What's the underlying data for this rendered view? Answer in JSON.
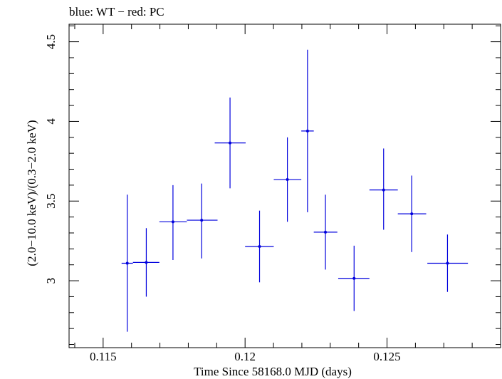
{
  "chart_data": {
    "type": "scatter",
    "title": "blue: WT − red: PC",
    "xlabel": "Time Since 58168.0 MJD (days)",
    "ylabel": "(2.0−10.0 keV)/(0.3−2.0 keV)",
    "xlim": [
      0.1138,
      0.129
    ],
    "ylim": [
      2.58,
      4.61
    ],
    "x_ticks": [
      {
        "value": 0.115,
        "label": "0.115"
      },
      {
        "value": 0.12,
        "label": "0.12"
      },
      {
        "value": 0.125,
        "label": "0.125"
      }
    ],
    "y_ticks": [
      {
        "value": 3,
        "label": "3"
      },
      {
        "value": 3.5,
        "label": "3.5"
      },
      {
        "value": 4,
        "label": "4"
      },
      {
        "value": 4.5,
        "label": "4.5"
      }
    ],
    "grid": false,
    "series": [
      {
        "color": "#0000dd",
        "points": [
          {
            "x": 0.11585,
            "y": 3.11,
            "xerr_low": 0.11565,
            "xerr_high": 0.11605,
            "yerr_low": 2.68,
            "yerr_high": 3.54
          },
          {
            "x": 0.11652,
            "y": 3.115,
            "xerr_low": 0.11605,
            "xerr_high": 0.11698,
            "yerr_low": 2.9,
            "yerr_high": 3.33
          },
          {
            "x": 0.11746,
            "y": 3.37,
            "xerr_low": 0.11698,
            "xerr_high": 0.11795,
            "yerr_low": 3.13,
            "yerr_high": 3.6
          },
          {
            "x": 0.11847,
            "y": 3.38,
            "xerr_low": 0.11795,
            "xerr_high": 0.11903,
            "yerr_low": 3.14,
            "yerr_high": 3.61
          },
          {
            "x": 0.11947,
            "y": 3.865,
            "xerr_low": 0.11893,
            "xerr_high": 0.12002,
            "yerr_low": 3.58,
            "yerr_high": 4.15
          },
          {
            "x": 0.12051,
            "y": 3.215,
            "xerr_low": 0.12,
            "xerr_high": 0.12101,
            "yerr_low": 2.99,
            "yerr_high": 3.44
          },
          {
            "x": 0.12149,
            "y": 3.635,
            "xerr_low": 0.12101,
            "xerr_high": 0.12198,
            "yerr_low": 3.37,
            "yerr_high": 3.9
          },
          {
            "x": 0.1222,
            "y": 3.94,
            "xerr_low": 0.12198,
            "xerr_high": 0.12242,
            "yerr_low": 3.43,
            "yerr_high": 4.45
          },
          {
            "x": 0.12283,
            "y": 3.305,
            "xerr_low": 0.12242,
            "xerr_high": 0.12325,
            "yerr_low": 3.07,
            "yerr_high": 3.54
          },
          {
            "x": 0.12384,
            "y": 3.015,
            "xerr_low": 0.12328,
            "xerr_high": 0.12438,
            "yerr_low": 2.81,
            "yerr_high": 3.22
          },
          {
            "x": 0.12488,
            "y": 3.57,
            "xerr_low": 0.12438,
            "xerr_high": 0.12538,
            "yerr_low": 3.32,
            "yerr_high": 3.83
          },
          {
            "x": 0.12587,
            "y": 3.42,
            "xerr_low": 0.12538,
            "xerr_high": 0.12638,
            "yerr_low": 3.18,
            "yerr_high": 3.66
          },
          {
            "x": 0.12713,
            "y": 3.11,
            "xerr_low": 0.12642,
            "xerr_high": 0.12785,
            "yerr_low": 2.93,
            "yerr_high": 3.29
          }
        ]
      }
    ]
  }
}
